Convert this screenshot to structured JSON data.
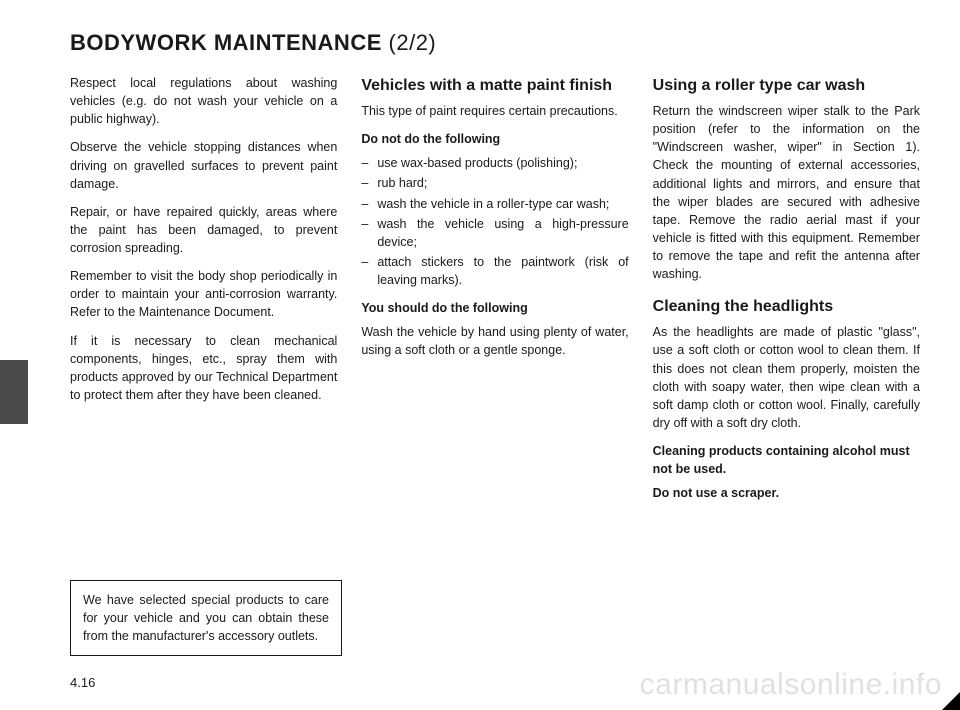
{
  "title_main": "BODYWORK MAINTENANCE",
  "title_sub": "(2/2)",
  "col1": {
    "p1": "Respect local regulations about wash­ing vehicles (e.g. do not wash your ve­hicle on a public highway).",
    "p2": "Observe the vehicle stopping distances when driving on gravelled surfaces to prevent paint damage.",
    "p3": "Repair, or have repaired quickly, areas where the paint has been damaged, to prevent corrosion spreading.",
    "p4": "Remember to visit the body shop pe­riodically in order to maintain your anti-corrosion warranty. Refer to the Maintenance Document.",
    "p5": "If it is necessary to clean mechani­cal components, hinges, etc., spray them with products approved by our Technical Department to protect them after they have been cleaned."
  },
  "note_box": "We have selected special products to care for your vehicle and you can obtain these from the manufactur­er's accessory outlets.",
  "col2": {
    "h1": "Vehicles with a matte paint finish",
    "p1": "This type of paint requires certain pre­cautions.",
    "dont_label": "Do not do the following",
    "dont_items": [
      "use wax-based products (polishing);",
      "rub hard;",
      "wash the vehicle in a roller-type car wash;",
      "wash the vehicle using a high-pres­sure device;",
      "attach stickers to the paintwork (risk of leaving marks)."
    ],
    "do_label": "You should do the following",
    "do_p": "Wash the vehicle by hand using plenty of water, using a soft cloth or a gentle sponge."
  },
  "col3": {
    "h1": "Using a roller type car wash",
    "p1": "Return the windscreen wiper stalk to the Park position (refer to the informa­tion on the \"Windscreen washer, wiper\" in Section 1). Check the mounting of external accessories, additional lights and mirrors, and ensure that the wiper blades are secured with adhesive tape. Remove the radio aerial mast if your vehicle is fitted with this equipment. Remember to remove the tape and refit the antenna after washing.",
    "h2": "Cleaning the headlights",
    "p2": "As the headlights are made of plastic \"glass\", use a soft cloth or cotton wool to clean them. If this does not clean them properly, moisten the cloth with soapy water, then wipe clean with a soft damp cloth or cotton wool.\nFinally, carefully dry off with a soft dry cloth.",
    "p3": "Cleaning products containing alco­hol must not be used.",
    "p4": "Do not use a scraper."
  },
  "page_number": "4.16",
  "watermark": "carmanualsonline.info"
}
